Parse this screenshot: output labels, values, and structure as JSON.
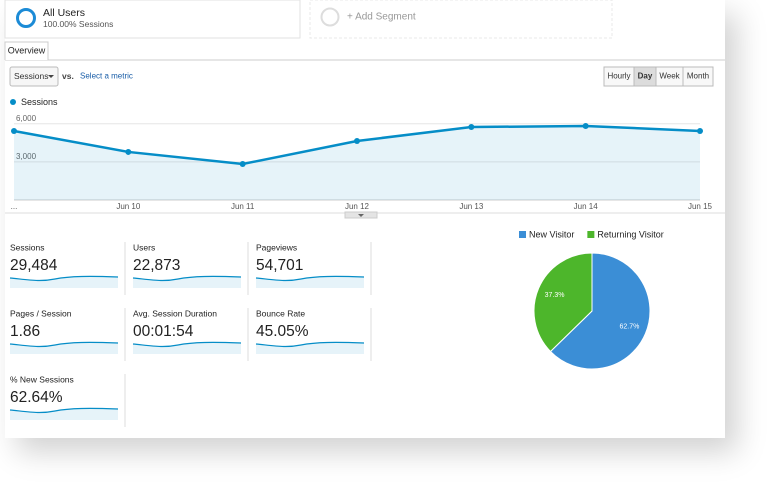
{
  "segments": [
    {
      "title": "All Users",
      "subtitle": "100.00% Sessions"
    },
    {
      "title": "+ Add Segment"
    }
  ],
  "tabs": [
    "Overview"
  ],
  "controls": {
    "metric": "Sessions",
    "vs": "vs.",
    "select": "Select a metric",
    "periods": [
      "Hourly",
      "Day",
      "Week",
      "Month"
    ],
    "active_period": 1
  },
  "chart_data": [
    {
      "type": "line",
      "categories": [
        "...",
        "Jun 10",
        "Jun 11",
        "Jun 12",
        "Jun 13",
        "Jun 14",
        "Jun 15"
      ],
      "series": [
        {
          "name": "Sessions",
          "color": "#058dc7",
          "values": [
            5430,
            3780,
            2830,
            4640,
            5740,
            5820,
            5430
          ]
        }
      ],
      "ylim": [
        0,
        7000
      ],
      "yticks": [
        {
          "value": 3000,
          "label": "3,000"
        },
        {
          "value": 6000,
          "label": "6,000"
        }
      ],
      "grid": true,
      "area": true
    },
    {
      "type": "pie",
      "categories": [
        "New Visitor",
        "Returning Visitor"
      ],
      "values": [
        62.7,
        37.3
      ],
      "value_labels": [
        "62.7%",
        "37.3%"
      ],
      "colors": [
        "#3b8ed6",
        "#4db62b"
      ],
      "legend": "top"
    }
  ],
  "metrics": [
    {
      "label": "Sessions",
      "value": "29,484"
    },
    {
      "label": "Users",
      "value": "22,873"
    },
    {
      "label": "Pageviews",
      "value": "54,701"
    },
    {
      "label": "Pages / Session",
      "value": "1.86"
    },
    {
      "label": "Avg. Session Duration",
      "value": "00:01:54"
    },
    {
      "label": "Bounce Rate",
      "value": "45.05%"
    },
    {
      "label": "% New Sessions",
      "value": "62.64%"
    }
  ]
}
